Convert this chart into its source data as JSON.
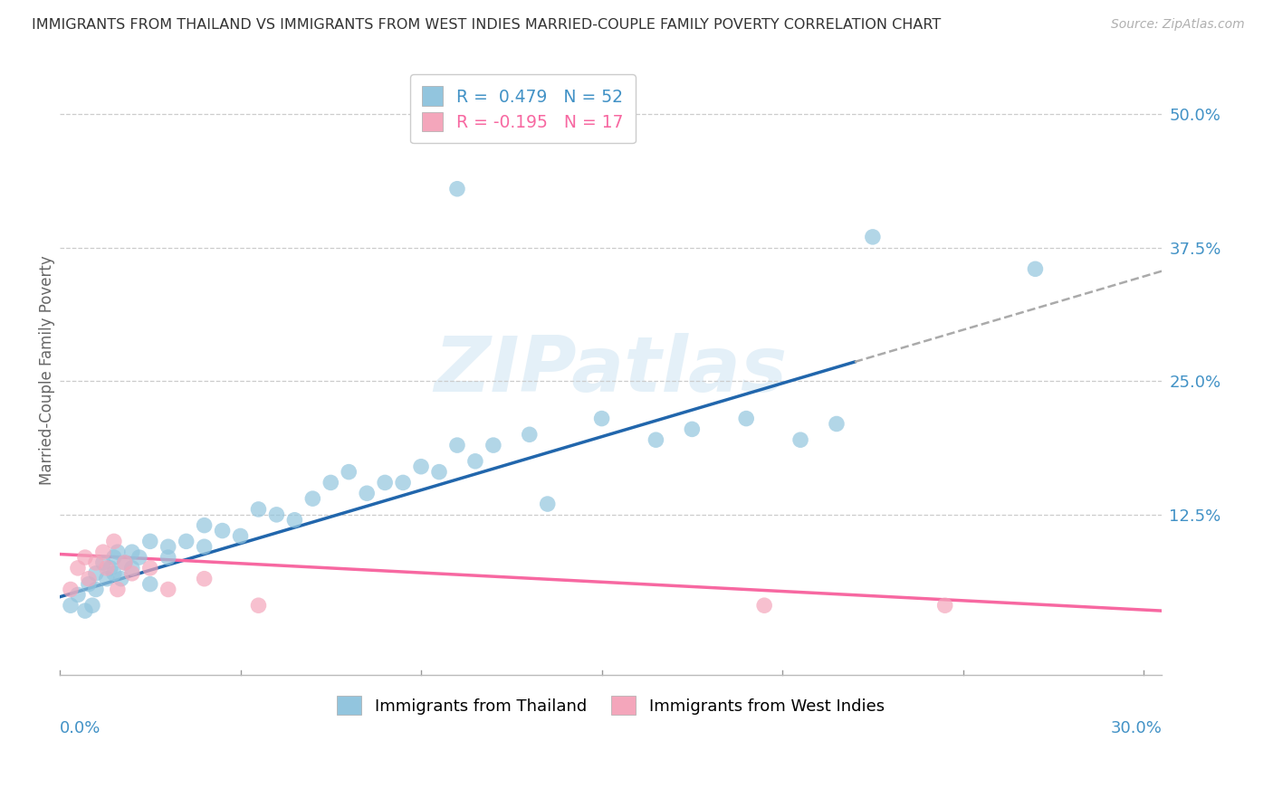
{
  "title": "IMMIGRANTS FROM THAILAND VS IMMIGRANTS FROM WEST INDIES MARRIED-COUPLE FAMILY POVERTY CORRELATION CHART",
  "source": "Source: ZipAtlas.com",
  "ylabel": "Married-Couple Family Poverty",
  "xlim": [
    0.0,
    0.305
  ],
  "ylim": [
    -0.025,
    0.545
  ],
  "ytick_values": [
    0.0,
    0.125,
    0.25,
    0.375,
    0.5
  ],
  "ytick_labels": [
    "",
    "12.5%",
    "25.0%",
    "37.5%",
    "50.0%"
  ],
  "color_thailand": "#92c5de",
  "color_westindies": "#f4a6bb",
  "color_regression_thailand": "#2166ac",
  "color_regression_westindies": "#f768a1",
  "color_regression_dash": "#aaaaaa",
  "color_axis_labels": "#4292c6",
  "color_gridlines": "#cccccc",
  "watermark": "ZIPatlas",
  "legend_r_thailand": "R =  0.479",
  "legend_n_thailand": "N = 52",
  "legend_r_westindies": "R = -0.195",
  "legend_n_westindies": "N = 17",
  "thailand_x": [
    0.003,
    0.005,
    0.007,
    0.008,
    0.009,
    0.01,
    0.01,
    0.012,
    0.013,
    0.014,
    0.015,
    0.015,
    0.016,
    0.017,
    0.018,
    0.02,
    0.02,
    0.022,
    0.025,
    0.025,
    0.03,
    0.03,
    0.035,
    0.04,
    0.04,
    0.045,
    0.05,
    0.055,
    0.06,
    0.065,
    0.07,
    0.075,
    0.08,
    0.085,
    0.09,
    0.095,
    0.1,
    0.105,
    0.11,
    0.115,
    0.12,
    0.13,
    0.15,
    0.165,
    0.175,
    0.19,
    0.205,
    0.215,
    0.225,
    0.27,
    0.11,
    0.135
  ],
  "thailand_y": [
    0.04,
    0.05,
    0.035,
    0.06,
    0.04,
    0.07,
    0.055,
    0.08,
    0.065,
    0.075,
    0.07,
    0.085,
    0.09,
    0.065,
    0.08,
    0.075,
    0.09,
    0.085,
    0.06,
    0.1,
    0.095,
    0.085,
    0.1,
    0.095,
    0.115,
    0.11,
    0.105,
    0.13,
    0.125,
    0.12,
    0.14,
    0.155,
    0.165,
    0.145,
    0.155,
    0.155,
    0.17,
    0.165,
    0.19,
    0.175,
    0.19,
    0.2,
    0.215,
    0.195,
    0.205,
    0.215,
    0.195,
    0.21,
    0.385,
    0.355,
    0.43,
    0.135
  ],
  "westindies_x": [
    0.003,
    0.005,
    0.007,
    0.008,
    0.01,
    0.012,
    0.013,
    0.015,
    0.016,
    0.018,
    0.02,
    0.025,
    0.03,
    0.04,
    0.055,
    0.195,
    0.245
  ],
  "westindies_y": [
    0.055,
    0.075,
    0.085,
    0.065,
    0.08,
    0.09,
    0.075,
    0.1,
    0.055,
    0.08,
    0.07,
    0.075,
    0.055,
    0.065,
    0.04,
    0.04,
    0.04
  ],
  "regression_thai_x0": 0.0,
  "regression_thai_y0": 0.048,
  "regression_thai_x1": 0.22,
  "regression_thai_y1": 0.268,
  "regression_dash_x0": 0.22,
  "regression_dash_x1": 0.305,
  "regression_wi_x0": 0.0,
  "regression_wi_y0": 0.088,
  "regression_wi_x1": 0.305,
  "regression_wi_y1": 0.035
}
